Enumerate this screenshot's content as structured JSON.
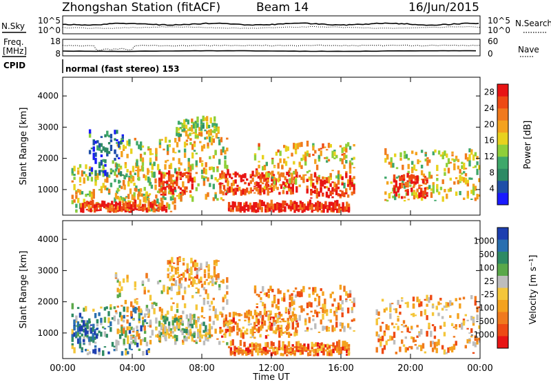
{
  "header": {
    "station": "Zhongshan Station (fitACF)",
    "beam": "Beam 14",
    "date": "16/Jun/2015"
  },
  "panels": {
    "nsky": {
      "label": "N.Sky",
      "left_ticks": [
        "10^5",
        "10^0"
      ],
      "right_label": "N.Search",
      "right_ticks": [
        "10^5",
        "10^0"
      ]
    },
    "freq": {
      "label_line1": "Freq.",
      "label_line2": "[MHz]",
      "left_ticks": [
        "18",
        "8"
      ],
      "right_label": "Nave",
      "right_ticks": [
        "60",
        "0"
      ]
    },
    "cpid": {
      "label": "CPID",
      "text": "normal (fast stereo) 153"
    }
  },
  "colors": {
    "power": [
      "#1a1aff",
      "#1f4fa8",
      "#2e8a64",
      "#3fa86a",
      "#8fcf3a",
      "#e8d21e",
      "#f4a21e",
      "#f07a1e",
      "#ee4a14",
      "#e81414"
    ],
    "velocity": [
      "#1e3fb0",
      "#2a6fb0",
      "#2e8a64",
      "#5aa84a",
      "#bdbdbd",
      "#f4c63a",
      "#f4a21e",
      "#f07a1e",
      "#ee4a14",
      "#e81414"
    ]
  },
  "chart_data": [
    {
      "type": "heatmap",
      "name": "power",
      "xlabel": "",
      "ylabel": "Slant Range [km]",
      "x_unit_range_hours": [
        0,
        24
      ],
      "ylim": [
        180,
        4600
      ],
      "y_ticks": [
        "1000",
        "2000",
        "3000",
        "4000"
      ],
      "colorbar": {
        "label": "Power [dB]",
        "ticks": [
          "4",
          "8",
          "12",
          "16",
          "20",
          "24",
          "28"
        ],
        "range": [
          0,
          30
        ]
      },
      "echo_regions": [
        {
          "t": [
            0.5,
            6.5
          ],
          "r": [
            250,
            1700
          ],
          "level": 0.55
        },
        {
          "t": [
            1.0,
            6.0
          ],
          "r": [
            250,
            500
          ],
          "level": 0.9
        },
        {
          "t": [
            3.0,
            9.5
          ],
          "r": [
            600,
            2600
          ],
          "level": 0.55
        },
        {
          "t": [
            5.5,
            7.5
          ],
          "r": [
            800,
            1500
          ],
          "level": 0.95
        },
        {
          "t": [
            6.5,
            9.0
          ],
          "r": [
            2600,
            3200
          ],
          "level": 0.5
        },
        {
          "t": [
            9.0,
            13.5
          ],
          "r": [
            800,
            1500
          ],
          "level": 0.9
        },
        {
          "t": [
            9.5,
            16.5
          ],
          "r": [
            250,
            500
          ],
          "level": 0.95
        },
        {
          "t": [
            11.0,
            16.8
          ],
          "r": [
            1000,
            2400
          ],
          "level": 0.6
        },
        {
          "t": [
            14.0,
            16.8
          ],
          "r": [
            700,
            1400
          ],
          "level": 0.95
        },
        {
          "t": [
            18.5,
            24.0
          ],
          "r": [
            600,
            2200
          ],
          "level": 0.55
        },
        {
          "t": [
            19.0,
            21.0
          ],
          "r": [
            700,
            1400
          ],
          "level": 0.95
        },
        {
          "t": [
            1.5,
            3.5
          ],
          "r": [
            1400,
            2800
          ],
          "level": 0.2
        }
      ]
    },
    {
      "type": "heatmap",
      "name": "velocity",
      "xlabel": "Time UT",
      "ylabel": "Slant Range [km]",
      "x_ticks": [
        "00:00",
        "04:00",
        "08:00",
        "12:00",
        "16:00",
        "20:00",
        "00:00"
      ],
      "ylim": [
        180,
        4600
      ],
      "y_ticks": [
        "1000",
        "2000",
        "3000",
        "4000"
      ],
      "colorbar": {
        "label": "Velocity [m s⁻¹]",
        "ticks": [
          "1000",
          "500",
          "100",
          "25",
          "-25",
          "-100",
          "-500",
          "-1000"
        ]
      },
      "echo_regions": [
        {
          "t": [
            0.5,
            5.0
          ],
          "r": [
            250,
            1800
          ],
          "level": 0.3
        },
        {
          "t": [
            0.5,
            2.0
          ],
          "r": [
            700,
            1300
          ],
          "level": 0.15
        },
        {
          "t": [
            3.0,
            9.5
          ],
          "r": [
            600,
            2800
          ],
          "level": 0.55
        },
        {
          "t": [
            6.0,
            9.0
          ],
          "r": [
            2500,
            3300
          ],
          "level": 0.65
        },
        {
          "t": [
            9.5,
            16.5
          ],
          "r": [
            250,
            600
          ],
          "level": 0.75
        },
        {
          "t": [
            9.0,
            13.5
          ],
          "r": [
            800,
            1600
          ],
          "level": 0.7
        },
        {
          "t": [
            11.0,
            16.8
          ],
          "r": [
            1000,
            2400
          ],
          "level": 0.65
        },
        {
          "t": [
            18.0,
            24.0
          ],
          "r": [
            300,
            2100
          ],
          "level": 0.65
        },
        {
          "t": [
            5.5,
            8.5
          ],
          "r": [
            700,
            1500
          ],
          "level": 0.45
        }
      ]
    }
  ]
}
